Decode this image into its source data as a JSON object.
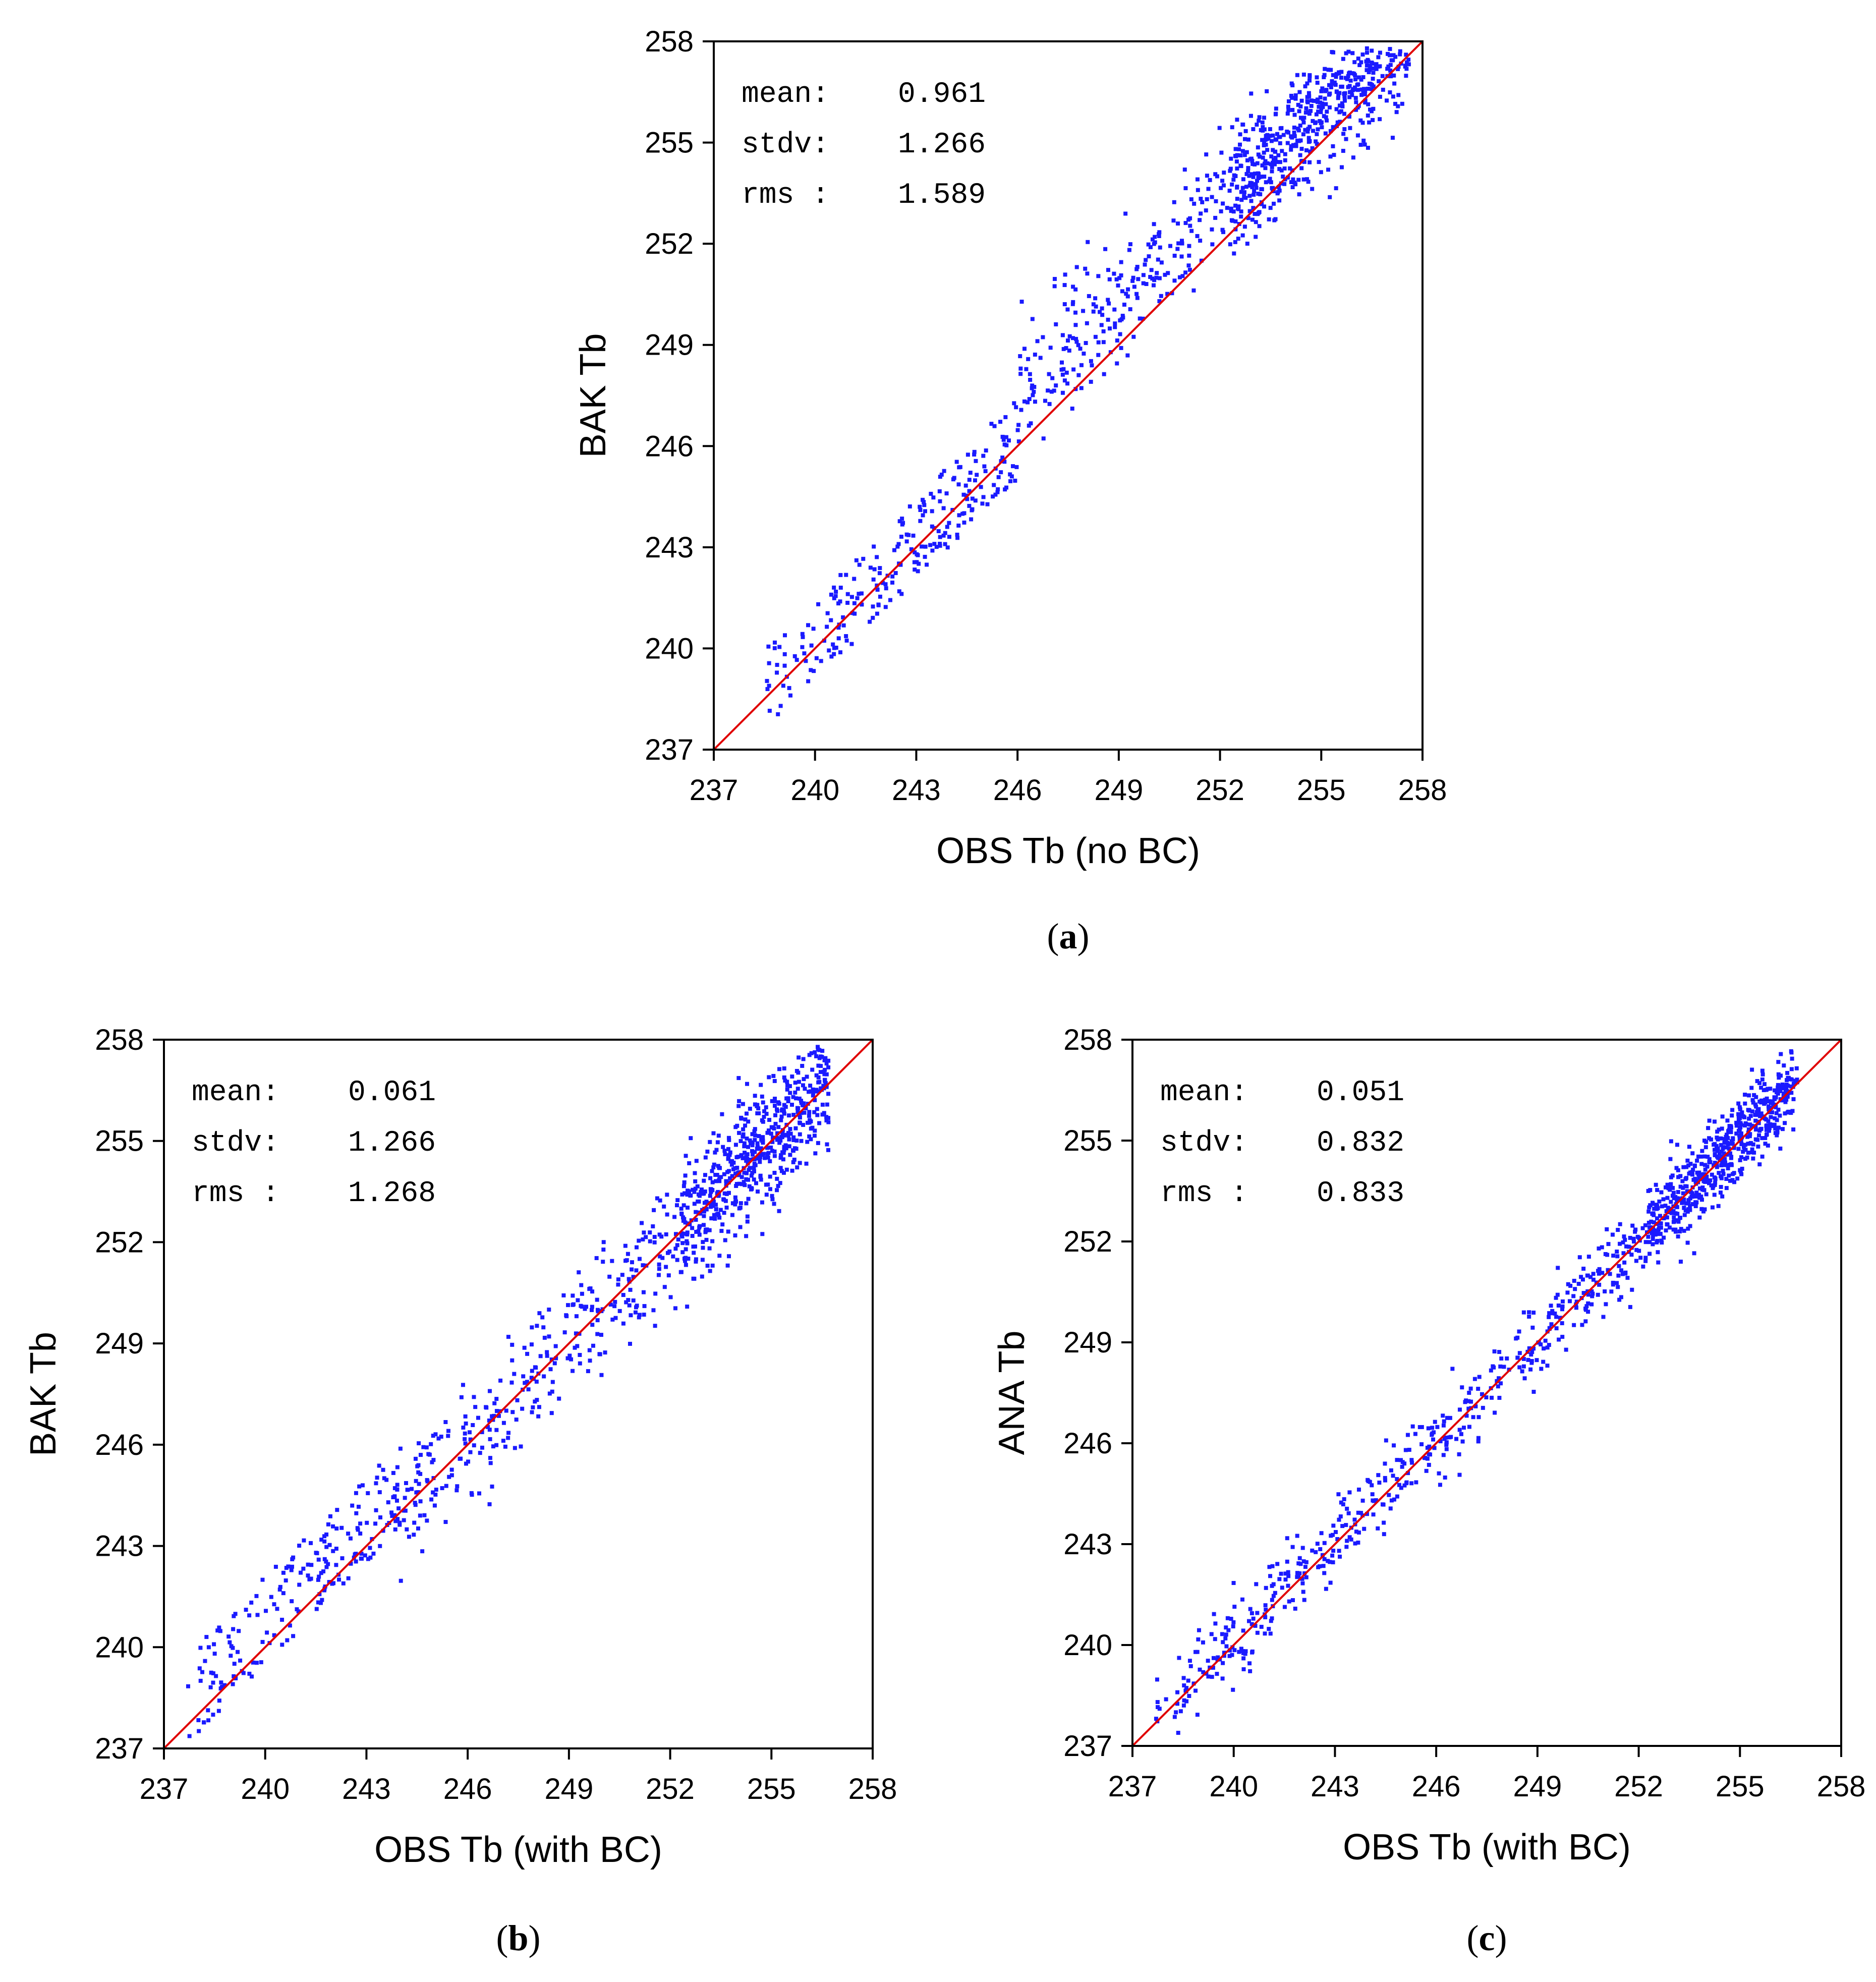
{
  "colors": {
    "points": "#1a1aff",
    "one_to_one": "#e00000",
    "axes": "#000000"
  },
  "chart_data": [
    {
      "type": "scatter",
      "panel": "(a)",
      "panel_letter": "a",
      "xlabel": "OBS Tb (no BC)",
      "ylabel": "BAK Tb",
      "xlim": [
        237,
        258
      ],
      "ylim": [
        237,
        258
      ],
      "ticks": [
        237,
        240,
        243,
        246,
        249,
        252,
        255,
        258
      ],
      "tick_labels": [
        "237",
        "240",
        "243",
        "246",
        "249",
        "252",
        "255",
        "258"
      ],
      "reference_line": "y = x",
      "stats": [
        {
          "name": "mean:",
          "value": "0.961"
        },
        {
          "name": "stdv:",
          "value": "1.266"
        },
        {
          "name": "rms :",
          "value": "1.589"
        }
      ],
      "point_bias": 0.961,
      "point_spread": 1.266,
      "x_range": [
        238.5,
        257.6
      ],
      "n_points": 1100
    },
    {
      "type": "scatter",
      "panel": "(b)",
      "panel_letter": "b",
      "xlabel": "OBS Tb (with BC)",
      "ylabel": "BAK Tb",
      "xlim": [
        237,
        258
      ],
      "ylim": [
        237,
        258
      ],
      "ticks": [
        237,
        240,
        243,
        246,
        249,
        252,
        255,
        258
      ],
      "tick_labels": [
        "237",
        "240",
        "243",
        "246",
        "249",
        "252",
        "255",
        "258"
      ],
      "reference_line": "y = x",
      "stats": [
        {
          "name": "mean:",
          "value": "0.061"
        },
        {
          "name": "stdv:",
          "value": "1.266"
        },
        {
          "name": "rms :",
          "value": "1.268"
        }
      ],
      "point_bias": 0.061,
      "point_spread": 1.266,
      "x_range": [
        237.6,
        256.7
      ],
      "n_points": 1100
    },
    {
      "type": "scatter",
      "panel": "(c)",
      "panel_letter": "c",
      "xlabel": "OBS Tb (with BC)",
      "ylabel": "ANA Tb",
      "xlim": [
        237,
        258
      ],
      "ylim": [
        237,
        258
      ],
      "ticks": [
        237,
        240,
        243,
        246,
        249,
        252,
        255,
        258
      ],
      "tick_labels": [
        "237",
        "240",
        "243",
        "246",
        "249",
        "252",
        "255",
        "258"
      ],
      "reference_line": "y = x",
      "stats": [
        {
          "name": "mean:",
          "value": "0.051"
        },
        {
          "name": "stdv:",
          "value": "0.832"
        },
        {
          "name": "rms :",
          "value": "0.833"
        }
      ],
      "point_bias": 0.051,
      "point_spread": 0.832,
      "x_range": [
        237.6,
        256.7
      ],
      "n_points": 1100
    }
  ]
}
